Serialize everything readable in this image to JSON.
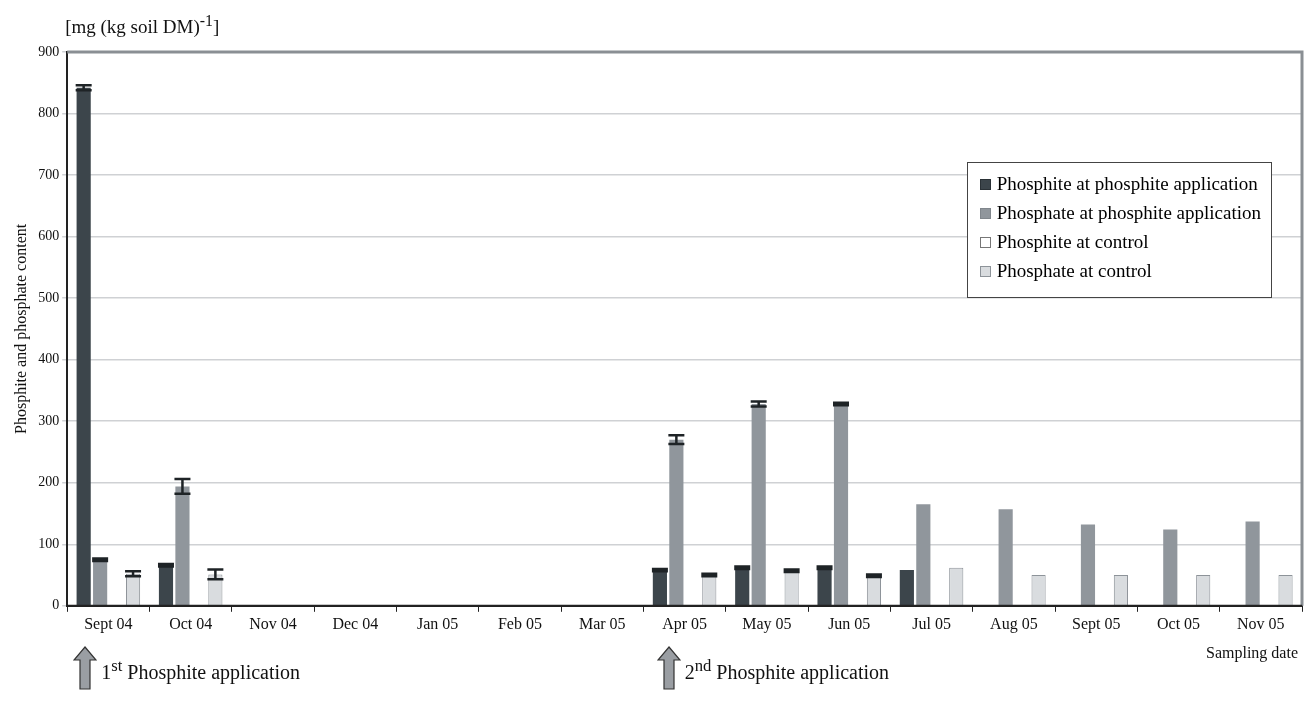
{
  "chart_data": {
    "type": "bar",
    "categories": [
      "Sept 04",
      "Oct 04",
      "Nov 04",
      "Dec 04",
      "Jan 05",
      "Feb 05",
      "Mar 05",
      "Apr 05",
      "May 05",
      "Jun 05",
      "Jul 05",
      "Aug 05",
      "Sept 05",
      "Oct 05",
      "Nov 05"
    ],
    "series": [
      {
        "name": "Phosphite at phosphite application",
        "color": "#3c454b",
        "values": [
          842,
          66,
          null,
          null,
          null,
          null,
          null,
          58,
          62,
          62,
          58,
          null,
          null,
          null,
          null
        ],
        "errors": [
          4,
          2,
          null,
          null,
          null,
          null,
          null,
          2,
          2,
          2,
          null,
          null,
          null,
          null,
          null
        ]
      },
      {
        "name": "Phosphate at phosphite application",
        "color": "#90969c",
        "values": [
          75,
          194,
          null,
          null,
          null,
          null,
          null,
          270,
          328,
          328,
          165,
          157,
          132,
          124,
          137
        ],
        "errors": [
          2,
          12,
          null,
          null,
          null,
          null,
          null,
          7,
          4,
          2,
          null,
          null,
          null,
          null,
          null
        ]
      },
      {
        "name": "Phosphite at control",
        "color": "#ffffff",
        "values": [
          null,
          null,
          null,
          null,
          null,
          null,
          null,
          null,
          null,
          null,
          null,
          null,
          null,
          null,
          null
        ]
      },
      {
        "name": "Phosphate at control",
        "color": "#d9dcdf",
        "values": [
          52,
          51,
          null,
          null,
          null,
          null,
          null,
          50,
          57,
          49,
          62,
          50,
          50,
          50,
          50
        ],
        "errors": [
          4,
          8,
          null,
          null,
          null,
          null,
          null,
          2,
          2,
          2,
          null,
          null,
          null,
          null,
          null
        ]
      }
    ],
    "ylabel": "Phosphite and phosphate content",
    "xlabel": "Sampling date",
    "ylim": [
      0,
      900
    ],
    "yticks": [
      0,
      100,
      200,
      300,
      400,
      500,
      600,
      700,
      800,
      900
    ],
    "grid": "y",
    "legend": "right",
    "annotations": [
      "[mg (kg soil DM)$^{-1}$]",
      "1$^{st}$ Phosphite application",
      "2$^{nd}$ Phosphite application"
    ]
  }
}
